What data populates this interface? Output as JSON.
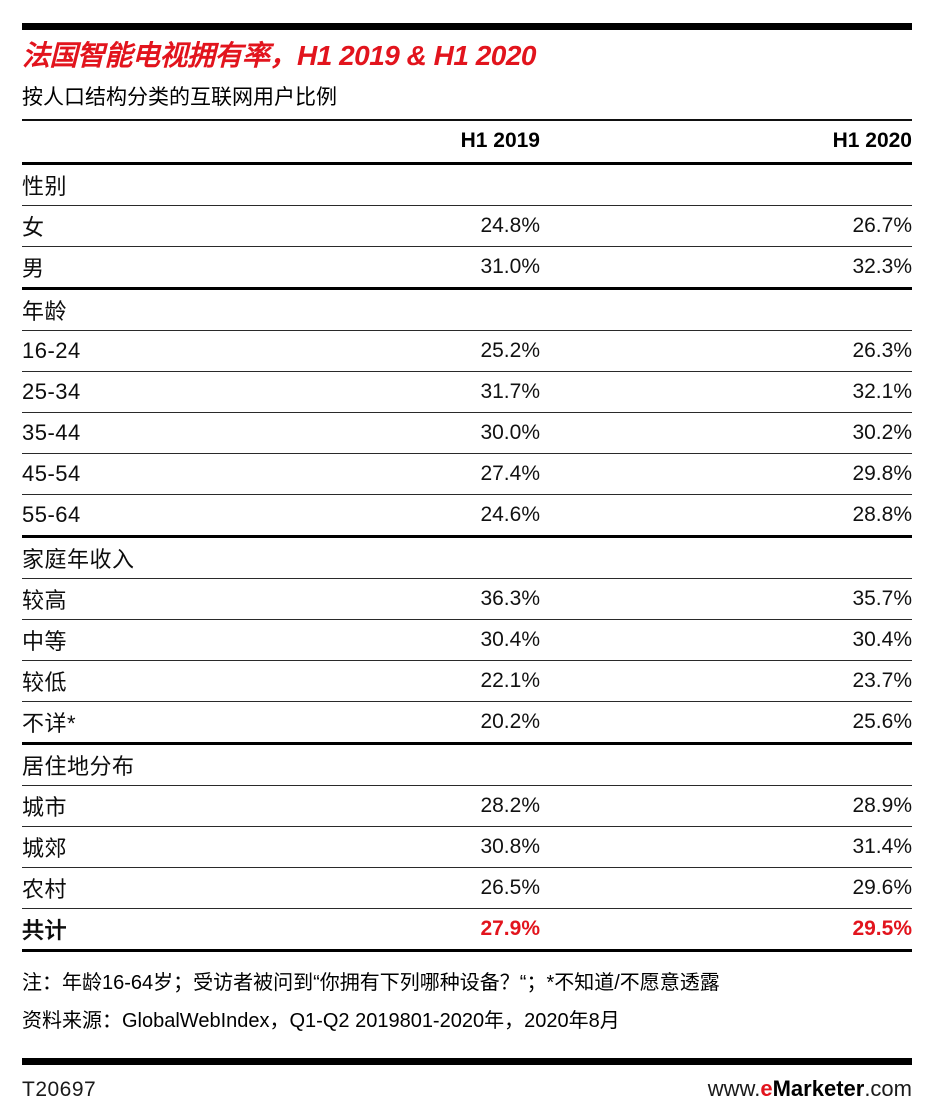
{
  "colors": {
    "accent_red": "#e2141d",
    "bar_black": "#000000"
  },
  "header": {
    "title": "法国智能电视拥有率，H1 2019 & H1 2020",
    "subtitle": "按人口结构分类的互联网用户比例"
  },
  "table": {
    "head": {
      "c1": "H1 2019",
      "c2": "H1 2020"
    },
    "sections": [
      {
        "label": "性别",
        "rows": [
          {
            "label": "女",
            "v1": "24.8%",
            "v2": "26.7%"
          },
          {
            "label": "男",
            "v1": "31.0%",
            "v2": "32.3%"
          }
        ]
      },
      {
        "label": "年龄",
        "rows": [
          {
            "label": "16-24",
            "v1": "25.2%",
            "v2": "26.3%"
          },
          {
            "label": "25-34",
            "v1": "31.7%",
            "v2": "32.1%"
          },
          {
            "label": "35-44",
            "v1": "30.0%",
            "v2": "30.2%"
          },
          {
            "label": "45-54",
            "v1": "27.4%",
            "v2": "29.8%"
          },
          {
            "label": "55-64",
            "v1": "24.6%",
            "v2": "28.8%"
          }
        ]
      },
      {
        "label": "家庭年收入",
        "rows": [
          {
            "label": "较高",
            "v1": "36.3%",
            "v2": "35.7%"
          },
          {
            "label": "中等",
            "v1": "30.4%",
            "v2": "30.4%"
          },
          {
            "label": "较低",
            "v1": "22.1%",
            "v2": "23.7%"
          },
          {
            "label": "不详*",
            "v1": "20.2%",
            "v2": "25.6%"
          }
        ]
      },
      {
        "label": "居住地分布",
        "rows": [
          {
            "label": "城市",
            "v1": "28.2%",
            "v2": "28.9%"
          },
          {
            "label": "城郊",
            "v1": "30.8%",
            "v2": "31.4%"
          },
          {
            "label": "农村",
            "v1": "26.5%",
            "v2": "29.6%"
          }
        ]
      }
    ],
    "total": {
      "label": "共计",
      "v1": "27.9%",
      "v2": "29.5%"
    }
  },
  "notes": {
    "note": "注：年龄16-64岁；受访者被问到“你拥有下列哪种设备？“；*不知道/不愿意透露",
    "source": "资料来源：GlobalWebIndex，Q1-Q2 2019801-2020年，2020年8月"
  },
  "footer": {
    "chart_id": "T20697",
    "url_www": "www.",
    "url_e": "e",
    "url_rest": "Marketer",
    "url_com": ".com"
  },
  "chart_data": {
    "type": "table",
    "title": "法国智能电视拥有率，H1 2019 & H1 2020",
    "subtitle": "按人口结构分类的互联网用户比例",
    "unit": "% of internet users",
    "columns": [
      "H1 2019",
      "H1 2020"
    ],
    "sections": [
      {
        "label": "性别",
        "rows": [
          [
            "女",
            24.8,
            26.7
          ],
          [
            "男",
            31.0,
            32.3
          ]
        ]
      },
      {
        "label": "年龄",
        "rows": [
          [
            "16-24",
            25.2,
            26.3
          ],
          [
            "25-34",
            31.7,
            32.1
          ],
          [
            "35-44",
            30.0,
            30.2
          ],
          [
            "45-54",
            27.4,
            29.8
          ],
          [
            "55-64",
            24.6,
            28.8
          ]
        ]
      },
      {
        "label": "家庭年收入",
        "rows": [
          [
            "较高",
            36.3,
            35.7
          ],
          [
            "中等",
            30.4,
            30.4
          ],
          [
            "较低",
            22.1,
            23.7
          ],
          [
            "不详*",
            20.2,
            25.6
          ]
        ]
      },
      {
        "label": "居住地分布",
        "rows": [
          [
            "城市",
            28.2,
            28.9
          ],
          [
            "城郊",
            30.8,
            31.4
          ],
          [
            "农村",
            26.5,
            29.6
          ]
        ]
      }
    ],
    "total": [
      "共计",
      27.9,
      29.5
    ]
  }
}
